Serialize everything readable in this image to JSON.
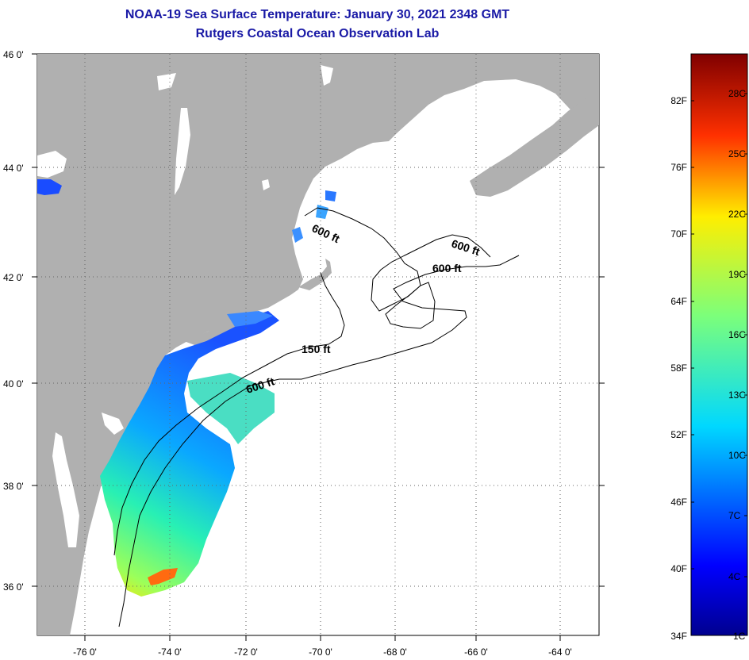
{
  "title": {
    "line1": "NOAA-19 Sea Surface Temperature:  January 30, 2021 2348 GMT",
    "line2": "Rutgers Coastal Ocean Observation Lab"
  },
  "map": {
    "lat_labels": [
      "46 0'",
      "44 0'",
      "42 0'",
      "40 0'",
      "38 0'",
      "36 0'"
    ],
    "lon_labels": [
      "-76 0'",
      "-74 0'",
      "-72 0'",
      "-70 0'",
      "-68 0'",
      "-66 0'",
      "-64 0'"
    ],
    "contour_labels": [
      "600 ft",
      "600 ft",
      "600 ft",
      "150 ft",
      "600 ft"
    ],
    "colors": {
      "land": "#b0b0b0",
      "ocean": "#ffffff"
    }
  },
  "colorbar": {
    "fahrenheit_labels": [
      "82F",
      "76F",
      "70F",
      "64F",
      "58F",
      "52F",
      "46F",
      "40F",
      "34F"
    ],
    "celsius_labels": [
      "28C",
      "25C",
      "22C",
      "19C",
      "16C",
      "13C",
      "10C",
      "7C",
      "4C",
      "1C"
    ]
  }
}
